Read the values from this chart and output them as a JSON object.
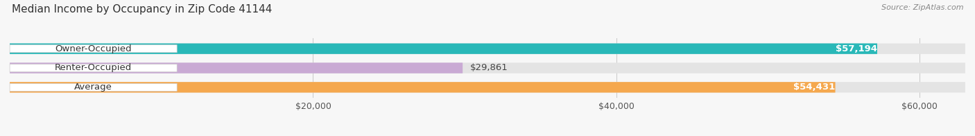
{
  "title": "Median Income by Occupancy in Zip Code 41144",
  "source": "Source: ZipAtlas.com",
  "categories": [
    "Owner-Occupied",
    "Renter-Occupied",
    "Average"
  ],
  "values": [
    57194,
    29861,
    54431
  ],
  "bar_colors": [
    "#29b8b8",
    "#c9aad4",
    "#f5a84e"
  ],
  "bar_labels": [
    "$57,194",
    "$29,861",
    "$54,431"
  ],
  "x_tick_labels": [
    "$20,000",
    "$40,000",
    "$60,000"
  ],
  "x_ticks": [
    20000,
    40000,
    60000
  ],
  "x_min": 0,
  "x_max": 63000,
  "background_color": "#f7f7f7",
  "bar_bg_color": "#e4e4e4",
  "title_fontsize": 11,
  "label_fontsize": 9.5,
  "tick_fontsize": 9,
  "source_fontsize": 8
}
